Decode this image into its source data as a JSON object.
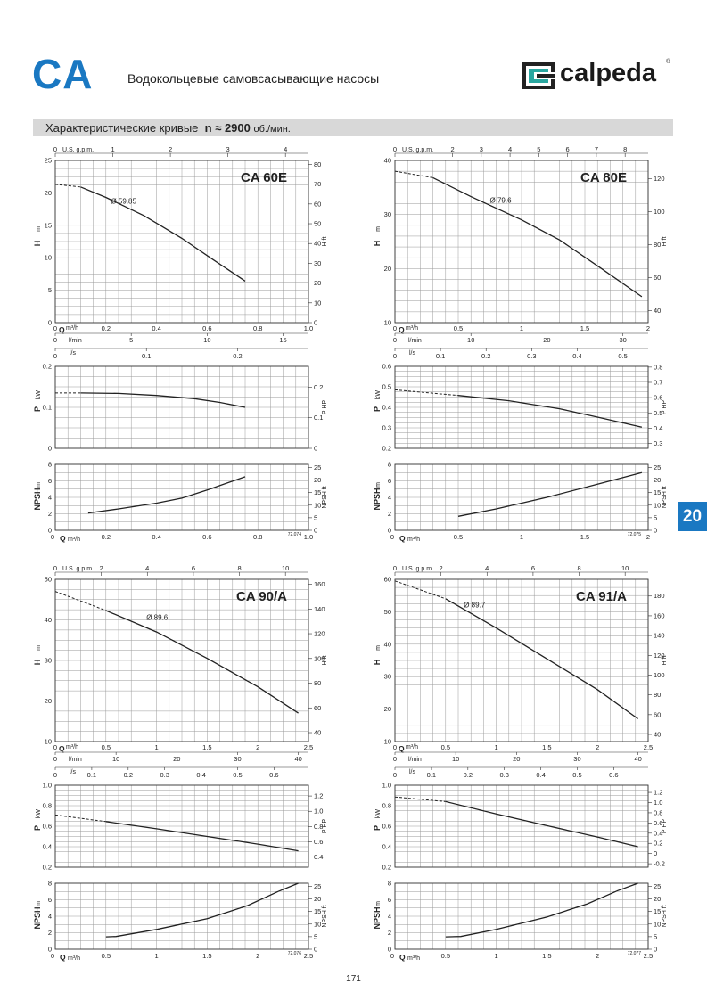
{
  "header": {
    "series_code": "CA",
    "title": "Водокольцевые самовсасывающие насосы",
    "brand": "calpeda",
    "brand_reg": "®"
  },
  "band": {
    "label": "Характеристические кривые",
    "speed_prefix": "n ≈",
    "speed_value": "2900",
    "speed_unit": "об./мин."
  },
  "side_tab": "20",
  "page_number": "171",
  "chart_data": [
    {
      "type": "line",
      "title": "CA 60E",
      "figure_code": "72.074",
      "labels": {
        "usgpm": "U.S. g.p.m.",
        "h": "H",
        "h_unit": "m",
        "hft": "H ft",
        "q": "Q",
        "q_unit": "m³/h",
        "lmin": "l/min",
        "ls": "l/s",
        "p": "P",
        "p_unit": "kW",
        "php": "P HP",
        "npsh": "NPSH",
        "npsh_unit": "m",
        "npshft": "NPSH ft"
      },
      "q_range": [
        0,
        1.0
      ],
      "q_ticks": [
        "0",
        "0.2",
        "0.4",
        "0.6",
        "0.8",
        "1.0"
      ],
      "usgpm_range": [
        0,
        4.4
      ],
      "usgpm_ticks": [
        "0",
        "1",
        "2",
        "3",
        "4"
      ],
      "lmin_range": [
        0,
        16.67
      ],
      "lmin_ticks": [
        "0",
        "5",
        "10",
        "15"
      ],
      "ls_range": [
        0,
        0.2778
      ],
      "ls_ticks": [
        "0",
        "0.1",
        "0.2"
      ],
      "h": {
        "range": [
          0,
          25
        ],
        "ticks": [
          "0",
          "5",
          "10",
          "15",
          "20",
          "25"
        ],
        "ft_range": [
          0,
          82
        ],
        "ft_ticks": [
          "0",
          "10",
          "20",
          "30",
          "40",
          "50",
          "60",
          "70",
          "80"
        ],
        "diameter_label": "Ø 59.85",
        "label_at": [
          0.22,
          18.7
        ],
        "dashed": [
          [
            0,
            21.3
          ],
          [
            0.1,
            20.9
          ]
        ],
        "solid": [
          [
            0.1,
            20.9
          ],
          [
            0.2,
            19.3
          ],
          [
            0.35,
            16.5
          ],
          [
            0.5,
            13.0
          ],
          [
            0.62,
            9.8
          ],
          [
            0.75,
            6.4
          ]
        ]
      },
      "p": {
        "range": [
          0,
          0.2
        ],
        "ticks": [
          "0",
          "0.1",
          "0.2"
        ],
        "ft_range": [
          0,
          0.268
        ],
        "ft_ticks": [
          "0",
          "0.1",
          "0.2"
        ],
        "dashed": [
          [
            0,
            0.135
          ],
          [
            0.1,
            0.135
          ]
        ],
        "solid": [
          [
            0.1,
            0.135
          ],
          [
            0.25,
            0.134
          ],
          [
            0.4,
            0.129
          ],
          [
            0.55,
            0.121
          ],
          [
            0.65,
            0.112
          ],
          [
            0.75,
            0.1
          ]
        ]
      },
      "npsh": {
        "range": [
          0,
          8
        ],
        "ticks": [
          "0",
          "2",
          "4",
          "6",
          "8"
        ],
        "ft_range": [
          0,
          26.2
        ],
        "ft_ticks": [
          "0",
          "5",
          "10",
          "15",
          "20",
          "25"
        ],
        "solid": [
          [
            0.13,
            2.1
          ],
          [
            0.25,
            2.6
          ],
          [
            0.4,
            3.3
          ],
          [
            0.5,
            3.9
          ],
          [
            0.6,
            4.9
          ],
          [
            0.75,
            6.5
          ]
        ]
      }
    },
    {
      "type": "line",
      "title": "CA 80E",
      "figure_code": "72.075",
      "labels": {
        "usgpm": "U.S. g.p.m.",
        "h": "H",
        "h_unit": "m",
        "hft": "H ft",
        "q": "Q",
        "q_unit": "m³/h",
        "lmin": "l/min",
        "ls": "l/s",
        "p": "P",
        "p_unit": "kW",
        "php": "P HP",
        "npsh": "NPSH",
        "npsh_unit": "m",
        "npshft": "NPSH ft"
      },
      "q_range": [
        0,
        2.0
      ],
      "q_ticks": [
        "0",
        "0.5",
        "1",
        "1.5",
        "2"
      ],
      "usgpm_range": [
        0,
        8.8
      ],
      "usgpm_ticks": [
        "0",
        "2",
        "3",
        "4",
        "5",
        "6",
        "7",
        "8"
      ],
      "lmin_range": [
        0,
        33.33
      ],
      "lmin_ticks": [
        "0",
        "10",
        "20",
        "30"
      ],
      "ls_range": [
        0,
        0.5556
      ],
      "ls_ticks": [
        "0",
        "0.1",
        "0.2",
        "0.3",
        "0.4",
        "0.5"
      ],
      "h": {
        "range": [
          10,
          40
        ],
        "ticks": [
          "10",
          "20",
          "30",
          "40"
        ],
        "ft_range": [
          32.8,
          131.2
        ],
        "ft_ticks": [
          "40",
          "60",
          "80",
          "100",
          "120"
        ],
        "diameter_label": "Ø 79.6",
        "label_at": [
          0.75,
          32.6
        ],
        "dashed": [
          [
            0,
            38.0
          ],
          [
            0.3,
            36.8
          ]
        ],
        "solid": [
          [
            0.3,
            36.8
          ],
          [
            0.6,
            33.3
          ],
          [
            1.0,
            29.0
          ],
          [
            1.3,
            25.3
          ],
          [
            1.6,
            20.5
          ],
          [
            1.95,
            14.8
          ]
        ]
      },
      "p": {
        "range": [
          0.2,
          0.6
        ],
        "ticks": [
          "0.2",
          "0.3",
          "0.4",
          "0.5",
          "0.6"
        ],
        "ft_range": [
          0.268,
          0.805
        ],
        "ft_ticks": [
          "0.3",
          "0.4",
          "0.5",
          "0.6",
          "0.7",
          "0.8"
        ],
        "dashed": [
          [
            0,
            0.485
          ],
          [
            0.5,
            0.458
          ]
        ],
        "solid": [
          [
            0.5,
            0.458
          ],
          [
            0.9,
            0.432
          ],
          [
            1.3,
            0.393
          ],
          [
            1.6,
            0.352
          ],
          [
            1.95,
            0.303
          ]
        ]
      },
      "npsh": {
        "range": [
          0,
          8
        ],
        "ticks": [
          "0",
          "2",
          "4",
          "6",
          "8"
        ],
        "ft_range": [
          0,
          26.2
        ],
        "ft_ticks": [
          "0",
          "5",
          "10",
          "15",
          "20",
          "25"
        ],
        "solid": [
          [
            0.5,
            1.7
          ],
          [
            0.8,
            2.6
          ],
          [
            1.2,
            4.0
          ],
          [
            1.6,
            5.6
          ],
          [
            1.95,
            7.0
          ]
        ]
      }
    },
    {
      "type": "line",
      "title": "CA 90/A",
      "figure_code": "72.076",
      "labels": {
        "usgpm": "U.S. g.p.m.",
        "h": "H",
        "h_unit": "m",
        "hft": "H ft",
        "q": "Q",
        "q_unit": "m³/h",
        "lmin": "l/min",
        "ls": "l/s",
        "p": "P",
        "p_unit": "kW",
        "php": "P HP",
        "npsh": "NPSH",
        "npsh_unit": "m",
        "npshft": "NPSH ft"
      },
      "q_range": [
        0,
        2.5
      ],
      "q_ticks": [
        "0",
        "0.5",
        "1",
        "1.5",
        "2",
        "2.5"
      ],
      "usgpm_range": [
        0,
        11
      ],
      "usgpm_ticks": [
        "0",
        "2",
        "4",
        "6",
        "8",
        "10"
      ],
      "lmin_range": [
        0,
        41.67
      ],
      "lmin_ticks": [
        "0",
        "10",
        "20",
        "30",
        "40"
      ],
      "ls_range": [
        0,
        0.6944
      ],
      "ls_ticks": [
        "0",
        "0.1",
        "0.2",
        "0.3",
        "0.4",
        "0.5",
        "0.6"
      ],
      "h": {
        "range": [
          10,
          50
        ],
        "ticks": [
          "10",
          "20",
          "30",
          "40",
          "50"
        ],
        "ft_range": [
          32.8,
          164
        ],
        "ft_ticks": [
          "40",
          "60",
          "80",
          "100",
          "120",
          "140",
          "160"
        ],
        "diameter_label": "Ø 89.6",
        "label_at": [
          0.9,
          40.5
        ],
        "dashed": [
          [
            0,
            47.0
          ],
          [
            0.5,
            42.3
          ]
        ],
        "solid": [
          [
            0.5,
            42.3
          ],
          [
            1.0,
            37.0
          ],
          [
            1.5,
            30.5
          ],
          [
            2.0,
            23.5
          ],
          [
            2.4,
            17.0
          ]
        ]
      },
      "p": {
        "range": [
          0.2,
          1.0
        ],
        "ticks": [
          "0.2",
          "0.4",
          "0.6",
          "0.8",
          "1.0"
        ],
        "ft_range": [
          0.268,
          1.341
        ],
        "ft_ticks": [
          "0.4",
          "0.6",
          "0.8",
          "1.0",
          "1.2"
        ],
        "dashed": [
          [
            0,
            0.71
          ],
          [
            0.5,
            0.645
          ]
        ],
        "solid": [
          [
            0.5,
            0.645
          ],
          [
            1.0,
            0.575
          ],
          [
            1.5,
            0.5
          ],
          [
            2.0,
            0.425
          ],
          [
            2.4,
            0.36
          ]
        ]
      },
      "npsh": {
        "range": [
          0,
          8
        ],
        "ticks": [
          "0",
          "2",
          "4",
          "6",
          "8"
        ],
        "ft_range": [
          0,
          26.2
        ],
        "ft_ticks": [
          "0",
          "5",
          "10",
          "15",
          "20",
          "25"
        ],
        "solid": [
          [
            0.5,
            1.5
          ],
          [
            0.6,
            1.55
          ],
          [
            1.0,
            2.4
          ],
          [
            1.5,
            3.7
          ],
          [
            1.9,
            5.3
          ],
          [
            2.2,
            7.0
          ],
          [
            2.4,
            8.0
          ]
        ]
      }
    },
    {
      "type": "line",
      "title": "CA 91/A",
      "figure_code": "72.077",
      "labels": {
        "usgpm": "U.S. g.p.m.",
        "h": "H",
        "h_unit": "m",
        "hft": "H ft",
        "q": "Q",
        "q_unit": "m³/h",
        "lmin": "l/min",
        "ls": "l/s",
        "p": "P",
        "p_unit": "kW",
        "php": "P HP",
        "npsh": "NPSH",
        "npsh_unit": "m",
        "npshft": "NPSH ft"
      },
      "q_range": [
        0,
        2.5
      ],
      "q_ticks": [
        "0",
        "0.5",
        "1",
        "1.5",
        "2",
        "2.5"
      ],
      "usgpm_range": [
        0,
        11
      ],
      "usgpm_ticks": [
        "0",
        "2",
        "4",
        "6",
        "8",
        "10"
      ],
      "lmin_range": [
        0,
        41.67
      ],
      "lmin_ticks": [
        "0",
        "10",
        "20",
        "30",
        "40"
      ],
      "ls_range": [
        0,
        0.6944
      ],
      "ls_ticks": [
        "0",
        "0.1",
        "0.2",
        "0.3",
        "0.4",
        "0.5",
        "0.6"
      ],
      "h": {
        "range": [
          10,
          60
        ],
        "ticks": [
          "10",
          "20",
          "30",
          "40",
          "50",
          "60"
        ],
        "ft_range": [
          32.8,
          196.9
        ],
        "ft_ticks": [
          "40",
          "60",
          "80",
          "100",
          "120",
          "140",
          "160",
          "180"
        ],
        "diameter_label": "Ø 89.7",
        "label_at": [
          0.68,
          52.0
        ],
        "dashed": [
          [
            0,
            59.5
          ],
          [
            0.5,
            54.0
          ]
        ],
        "solid": [
          [
            0.5,
            54.0
          ],
          [
            1.0,
            45.0
          ],
          [
            1.5,
            35.5
          ],
          [
            2.0,
            26.0
          ],
          [
            2.4,
            17.0
          ]
        ]
      },
      "p": {
        "range": [
          -0.2,
          1.0
        ],
        "ticks": [
          "0.2",
          "0.4",
          "0.6",
          "0.8",
          "1.0"
        ],
        "ft_range": [
          -0.268,
          1.341
        ],
        "ft_ticks": [
          "-0.2",
          "0",
          "0.2",
          "0.4",
          "0.6",
          "0.8",
          "1.0",
          "1.2"
        ],
        "visible_range": [
          0.2,
          1.0
        ],
        "dashed": [
          [
            0,
            0.885
          ],
          [
            0.5,
            0.84
          ]
        ],
        "solid": [
          [
            0.5,
            0.84
          ],
          [
            1.0,
            0.72
          ],
          [
            1.5,
            0.605
          ],
          [
            2.0,
            0.495
          ],
          [
            2.4,
            0.4
          ]
        ]
      },
      "npsh": {
        "range": [
          0,
          8
        ],
        "ticks": [
          "0",
          "2",
          "4",
          "6",
          "8"
        ],
        "ft_range": [
          0,
          26.2
        ],
        "ft_ticks": [
          "0",
          "5",
          "10",
          "15",
          "20",
          "25"
        ],
        "solid": [
          [
            0.5,
            1.5
          ],
          [
            0.65,
            1.55
          ],
          [
            1.0,
            2.4
          ],
          [
            1.5,
            3.9
          ],
          [
            1.9,
            5.5
          ],
          [
            2.2,
            7.1
          ],
          [
            2.4,
            8.0
          ]
        ]
      }
    }
  ]
}
